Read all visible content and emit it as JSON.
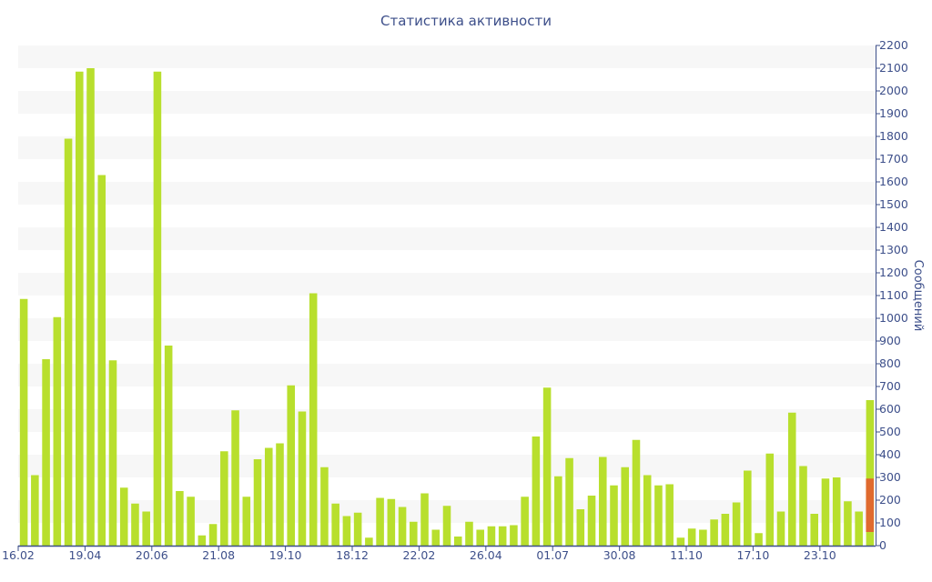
{
  "chart_data": {
    "type": "bar",
    "title": "Статистика активности",
    "ylabel": "Сообщений",
    "ylim": [
      0,
      2200
    ],
    "y_ticks": [
      0,
      100,
      200,
      300,
      400,
      500,
      600,
      700,
      800,
      900,
      1000,
      1100,
      1200,
      1300,
      1400,
      1500,
      1600,
      1700,
      1800,
      1900,
      2000,
      2100,
      2200
    ],
    "y_axis_position": "right",
    "grid": "horizontal alternating bands",
    "x_tick_labels": [
      {
        "index": 0,
        "label": "16.02"
      },
      {
        "index": 6,
        "label": "19.04"
      },
      {
        "index": 12,
        "label": "20.06"
      },
      {
        "index": 18,
        "label": "21.08"
      },
      {
        "index": 24,
        "label": "19.10"
      },
      {
        "index": 30,
        "label": "18.12"
      },
      {
        "index": 36,
        "label": "22.02"
      },
      {
        "index": 42,
        "label": "26.04"
      },
      {
        "index": 48,
        "label": "01.07"
      },
      {
        "index": 54,
        "label": "30.08"
      },
      {
        "index": 60,
        "label": "11.10"
      },
      {
        "index": 66,
        "label": "17.10"
      },
      {
        "index": 72,
        "label": "23.10"
      }
    ],
    "values": [
      1085,
      310,
      820,
      1005,
      1790,
      2085,
      2100,
      1630,
      815,
      255,
      185,
      150,
      2085,
      880,
      240,
      215,
      45,
      95,
      415,
      595,
      215,
      380,
      430,
      450,
      705,
      590,
      1110,
      345,
      185,
      130,
      145,
      35,
      210,
      205,
      170,
      105,
      230,
      70,
      175,
      40,
      105,
      70,
      85,
      85,
      90,
      215,
      480,
      695,
      305,
      385,
      160,
      220,
      390,
      265,
      345,
      465,
      310,
      265,
      270,
      35,
      75,
      70,
      115,
      140,
      190,
      330,
      55,
      405,
      150,
      585,
      350,
      140,
      295,
      300,
      195,
      150,
      640
    ],
    "highlight_bar": {
      "range": [
        60,
        295
      ]
    },
    "colors": {
      "bar": "#b8df2d",
      "highlight": "#e06a2e",
      "axis": "#3d4f8a",
      "band": "#f7f7f7"
    }
  }
}
